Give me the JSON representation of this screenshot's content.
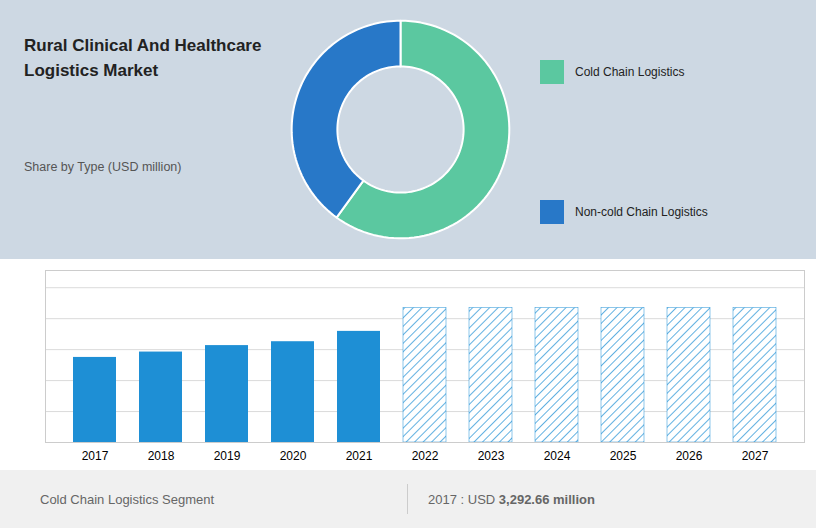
{
  "chart_data": [
    {
      "type": "donut",
      "title": "Rural Clinical And Healthcare\nLogistics Market",
      "subtitle": "Share by Type (USD million)",
      "categories": [
        "Cold Chain Logistics",
        "Non-cold Chain Logistics"
      ],
      "values": [
        60,
        40
      ],
      "colors": [
        "#5bc8a0",
        "#2878c8"
      ],
      "legend": "right"
    },
    {
      "type": "bar",
      "categories": [
        "2017",
        "2018",
        "2019",
        "2020",
        "2021",
        "2022",
        "2023",
        "2024",
        "2025",
        "2026",
        "2027"
      ],
      "series": [
        {
          "color": "#1e8fd5",
          "values": [
            3292,
            3500,
            3750,
            3900,
            4300,
            null,
            null,
            null,
            null,
            null,
            null
          ]
        },
        {
          "color": "#1e8fd5",
          "line_style": "hatch",
          "values": [
            null,
            null,
            null,
            null,
            null,
            5200,
            5200,
            5200,
            5200,
            5200,
            5200
          ]
        }
      ],
      "ylim": [
        0,
        6656
      ],
      "yticks": [
        0,
        1198.08,
        2396.16,
        3594.24,
        4792.32,
        5990.4
      ],
      "grid": true,
      "tick_labels": "x",
      "annotations": [
        "Cold Chain Logistics Segment",
        "2017 : USD 3,292.66 million"
      ]
    }
  ]
}
